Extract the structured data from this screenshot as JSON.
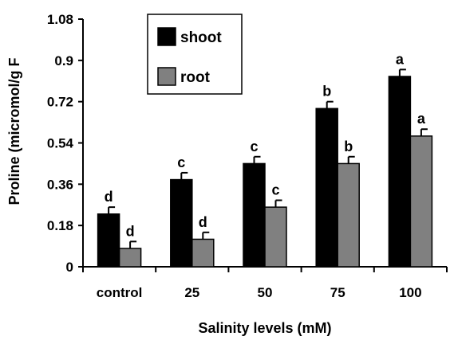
{
  "chart_data": {
    "type": "bar",
    "title": "",
    "xlabel": "Salinity levels (mM)",
    "ylabel": "Proline (micromol/g F",
    "categories": [
      "control",
      "25",
      "50",
      "75",
      "100"
    ],
    "ylim": [
      0,
      1.08
    ],
    "yticks": [
      "0",
      "0.18",
      "0.36",
      "0.54",
      "0.72",
      "0.9",
      "1.08"
    ],
    "ytick_values": [
      0,
      0.18,
      0.36,
      0.54,
      0.72,
      0.9,
      1.08
    ],
    "grid": false,
    "legend_position": "top-center",
    "series": [
      {
        "name": "shoot",
        "color": "#000000",
        "values": [
          0.23,
          0.38,
          0.45,
          0.69,
          0.83
        ],
        "errors": [
          0.03,
          0.03,
          0.03,
          0.03,
          0.03
        ],
        "labels": [
          "d",
          "c",
          "c",
          "b",
          "a"
        ]
      },
      {
        "name": "root",
        "color": "#808080",
        "values": [
          0.08,
          0.12,
          0.26,
          0.45,
          0.57
        ],
        "errors": [
          0.03,
          0.03,
          0.03,
          0.03,
          0.03
        ],
        "labels": [
          "d",
          "d",
          "c",
          "b",
          "a"
        ]
      }
    ]
  }
}
